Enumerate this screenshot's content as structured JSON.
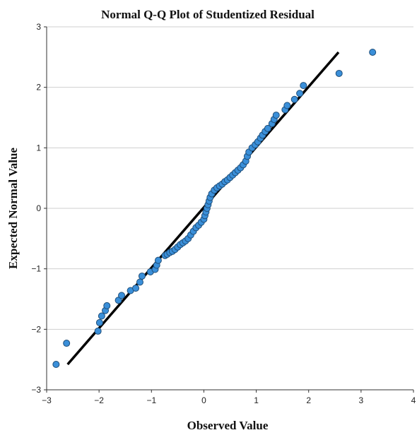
{
  "chart_data": {
    "type": "scatter",
    "title": "Normal Q-Q Plot of Studentized Residual",
    "xlabel": "Observed Value",
    "ylabel": "Expected Normal Value",
    "xlim": [
      -3,
      4
    ],
    "ylim": [
      -3,
      3
    ],
    "x_ticks": [
      -3,
      -2,
      -1,
      0,
      1,
      2,
      3,
      4
    ],
    "y_ticks": [
      -3,
      -2,
      -1,
      0,
      1,
      2,
      3
    ],
    "grid": "horizontal",
    "colors": {
      "point_fill": "#3a8fd9",
      "point_stroke": "#1f4e79",
      "line": "#000000",
      "grid": "#cfcfcf"
    },
    "reference_line": {
      "x": [
        -2.6,
        2.57
      ],
      "y": [
        -2.58,
        2.58
      ]
    },
    "series": [
      {
        "points": [
          [
            -2.82,
            -2.58
          ],
          [
            -2.62,
            -2.23
          ],
          [
            -2.02,
            -2.03
          ],
          [
            -1.99,
            -1.89
          ],
          [
            -1.95,
            -1.78
          ],
          [
            -1.88,
            -1.69
          ],
          [
            -1.85,
            -1.61
          ],
          [
            -1.63,
            -1.52
          ],
          [
            -1.57,
            -1.44
          ],
          [
            -1.4,
            -1.36
          ],
          [
            -1.3,
            -1.32
          ],
          [
            -1.22,
            -1.22
          ],
          [
            -1.18,
            -1.12
          ],
          [
            -1.02,
            -1.05
          ],
          [
            -0.93,
            -1.01
          ],
          [
            -0.9,
            -0.94
          ],
          [
            -0.87,
            -0.86
          ],
          [
            -0.74,
            -0.78
          ],
          [
            -0.7,
            -0.76
          ],
          [
            -0.65,
            -0.73
          ],
          [
            -0.6,
            -0.71
          ],
          [
            -0.55,
            -0.68
          ],
          [
            -0.5,
            -0.64
          ],
          [
            -0.45,
            -0.6
          ],
          [
            -0.4,
            -0.57
          ],
          [
            -0.35,
            -0.54
          ],
          [
            -0.3,
            -0.5
          ],
          [
            -0.25,
            -0.44
          ],
          [
            -0.2,
            -0.38
          ],
          [
            -0.15,
            -0.32
          ],
          [
            -0.1,
            -0.28
          ],
          [
            -0.05,
            -0.23
          ],
          [
            0.0,
            -0.18
          ],
          [
            0.02,
            -0.12
          ],
          [
            0.04,
            -0.06
          ],
          [
            0.06,
            0.0
          ],
          [
            0.08,
            0.06
          ],
          [
            0.1,
            0.12
          ],
          [
            0.12,
            0.18
          ],
          [
            0.15,
            0.24
          ],
          [
            0.2,
            0.3
          ],
          [
            0.25,
            0.34
          ],
          [
            0.3,
            0.37
          ],
          [
            0.35,
            0.4
          ],
          [
            0.4,
            0.44
          ],
          [
            0.45,
            0.47
          ],
          [
            0.5,
            0.51
          ],
          [
            0.55,
            0.55
          ],
          [
            0.6,
            0.59
          ],
          [
            0.65,
            0.63
          ],
          [
            0.7,
            0.67
          ],
          [
            0.75,
            0.72
          ],
          [
            0.8,
            0.78
          ],
          [
            0.83,
            0.86
          ],
          [
            0.86,
            0.93
          ],
          [
            0.92,
            1.0
          ],
          [
            0.98,
            1.05
          ],
          [
            1.03,
            1.1
          ],
          [
            1.08,
            1.16
          ],
          [
            1.12,
            1.21
          ],
          [
            1.17,
            1.27
          ],
          [
            1.22,
            1.32
          ],
          [
            1.3,
            1.4
          ],
          [
            1.34,
            1.47
          ],
          [
            1.38,
            1.54
          ],
          [
            1.55,
            1.63
          ],
          [
            1.59,
            1.7
          ],
          [
            1.73,
            1.8
          ],
          [
            1.83,
            1.9
          ],
          [
            1.9,
            2.03
          ],
          [
            2.58,
            2.23
          ],
          [
            3.22,
            2.58
          ]
        ]
      }
    ]
  }
}
